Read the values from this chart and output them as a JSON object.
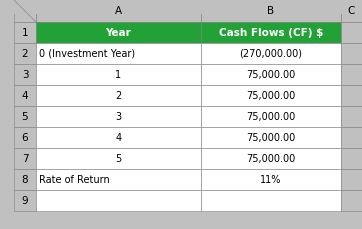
{
  "col_headers": [
    "A",
    "B",
    "C"
  ],
  "row_numbers": [
    "1",
    "2",
    "3",
    "4",
    "5",
    "6",
    "7",
    "8",
    "9"
  ],
  "header_row": [
    "Year",
    "Cash Flows (CF) $"
  ],
  "rows": [
    [
      "0 (Investment Year)",
      "(270,000.00)"
    ],
    [
      "1",
      "75,000.00"
    ],
    [
      "2",
      "75,000.00"
    ],
    [
      "3",
      "75,000.00"
    ],
    [
      "4",
      "75,000.00"
    ],
    [
      "5",
      "75,000.00"
    ],
    [
      "Rate of Return",
      "11%"
    ]
  ],
  "header_bg": "#21A136",
  "header_text_color": "#FFFFFF",
  "cell_bg": "#FFFFFF",
  "cell_text_color": "#000000",
  "outer_bg": "#C0C0C0",
  "border_color": "#808080",
  "fig_width": 3.62,
  "fig_height": 2.29,
  "dpi": 100
}
